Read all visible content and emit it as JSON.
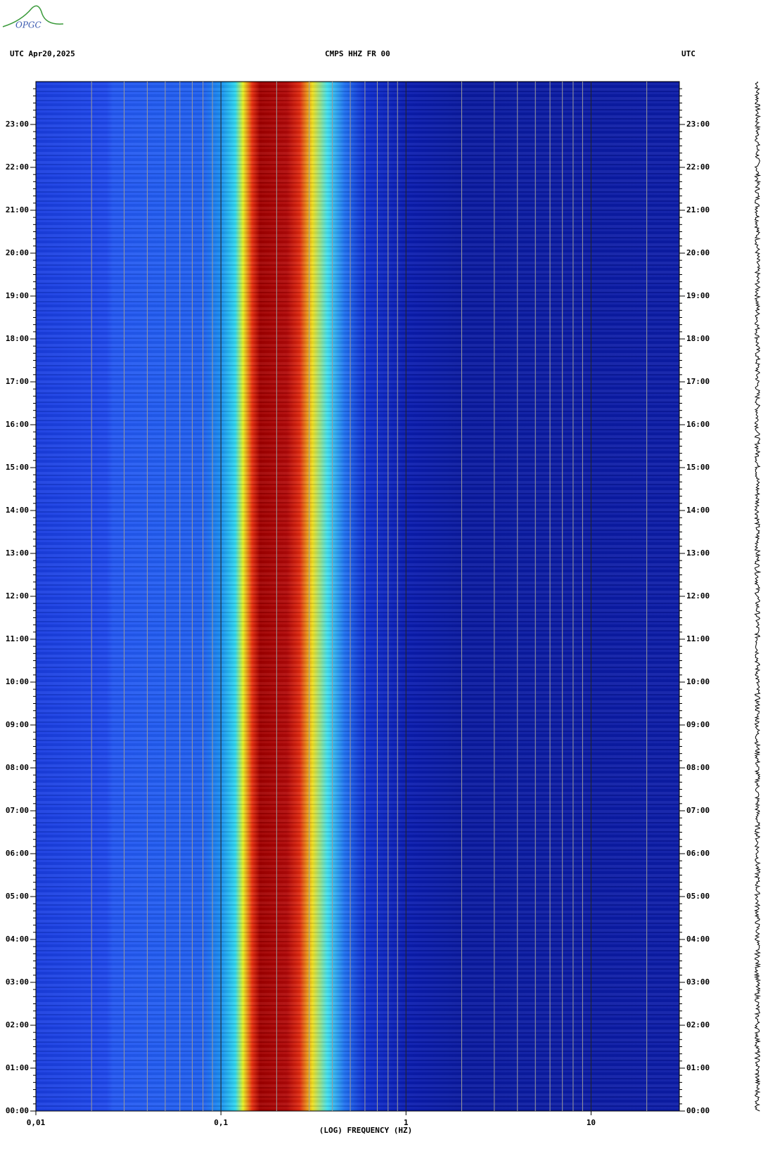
{
  "logo": "OPGC",
  "chart_data": {
    "type": "spectrogram",
    "title": "CMPS HHZ FR 00",
    "header_left": "UTC  Apr20,2025",
    "header_right": "UTC",
    "xlabel": "(LOG) FREQUENCY (HZ)",
    "xscale": "log",
    "xlim": [
      0.01,
      30
    ],
    "xticks": [
      {
        "value": 0.01,
        "label": "0,01"
      },
      {
        "value": 0.1,
        "label": "0,1"
      },
      1,
      10
    ],
    "xgrid": [
      0.02,
      0.03,
      0.04,
      0.05,
      0.06,
      0.07,
      0.08,
      0.09,
      0.2,
      0.3,
      0.4,
      0.5,
      0.6,
      0.7,
      0.8,
      0.9,
      2,
      3,
      4,
      5,
      6,
      7,
      8,
      9,
      20
    ],
    "ylim": [
      0,
      24
    ],
    "yticks": [
      {
        "value": 0,
        "label": "00:00"
      },
      {
        "value": 1,
        "label": "01:00"
      },
      {
        "value": 2,
        "label": "02:00"
      },
      {
        "value": 3,
        "label": "03:00"
      },
      {
        "value": 4,
        "label": "04:00"
      },
      {
        "value": 5,
        "label": "05:00"
      },
      {
        "value": 6,
        "label": "06:00"
      },
      {
        "value": 7,
        "label": "07:00"
      },
      {
        "value": 8,
        "label": "08:00"
      },
      {
        "value": 9,
        "label": "09:00"
      },
      {
        "value": 10,
        "label": "10:00"
      },
      {
        "value": 11,
        "label": "11:00"
      },
      {
        "value": 12,
        "label": "12:00"
      },
      {
        "value": 13,
        "label": "13:00"
      },
      {
        "value": 14,
        "label": "14:00"
      },
      {
        "value": 15,
        "label": "15:00"
      },
      {
        "value": 16,
        "label": "16:00"
      },
      {
        "value": 17,
        "label": "17:00"
      },
      {
        "value": 18,
        "label": "18:00"
      },
      {
        "value": 19,
        "label": "19:00"
      },
      {
        "value": 20,
        "label": "20:00"
      },
      {
        "value": 21,
        "label": "21:00"
      },
      {
        "value": 22,
        "label": "22:00"
      },
      {
        "value": 23,
        "label": "23:00"
      }
    ]
  }
}
